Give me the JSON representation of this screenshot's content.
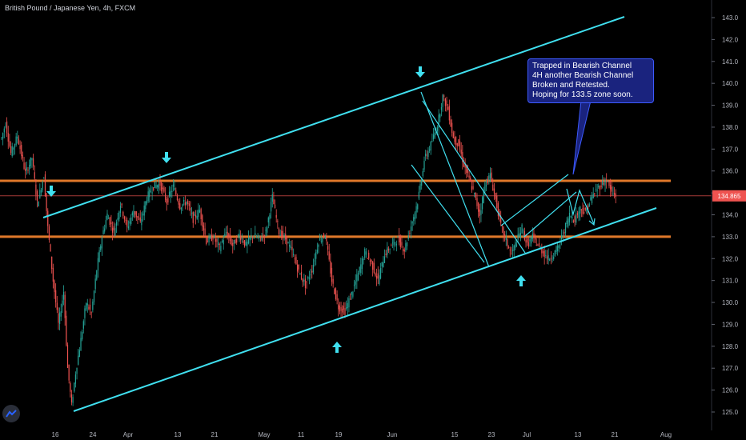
{
  "header": {
    "symbol": "British Pound / Japanese Yen, 4h, FXCM"
  },
  "note": {
    "lines": [
      "Trapped in Bearish Channel",
      "4H another Bearish Channel",
      "Broken and Retested.",
      "Hoping for 133.5 zone soon."
    ]
  },
  "logo": {
    "icon": "tradingview-logo-icon"
  },
  "colors": {
    "background": "#000000",
    "up": "#26a69a",
    "down": "#ef5350",
    "channel": "#40e0f0",
    "level": "#e0782a",
    "price_badge": "#ef5350",
    "note_bg": "#1a237e"
  },
  "chart_data": {
    "type": "candlestick",
    "ylim": [
      124.7,
      143.3
    ],
    "y_ticks": [
      125.0,
      126.0,
      127.0,
      128.0,
      129.0,
      130.0,
      131.0,
      132.0,
      133.0,
      134.0,
      135.0,
      136.0,
      137.0,
      138.0,
      139.0,
      140.0,
      141.0,
      142.0,
      143.0
    ],
    "x_ticks": [
      "16",
      "24",
      "Apr",
      "13",
      "21",
      "May",
      "11",
      "19",
      "Jun",
      "15",
      "23",
      "Jul",
      "13",
      "21",
      "Aug"
    ],
    "last_price": "134.865",
    "horizontal_levels": [
      135.55,
      133.0
    ],
    "price_path": [
      {
        "x": 0,
        "y": 137.5
      },
      {
        "x": 0.3,
        "y": 138.2
      },
      {
        "x": 0.7,
        "y": 136.8
      },
      {
        "x": 1.2,
        "y": 137.6
      },
      {
        "x": 1.8,
        "y": 135.9
      },
      {
        "x": 2.3,
        "y": 136.6
      },
      {
        "x": 2.7,
        "y": 134.5
      },
      {
        "x": 3.2,
        "y": 135.8
      },
      {
        "x": 3.5,
        "y": 133.4
      },
      {
        "x": 3.9,
        "y": 131.0
      },
      {
        "x": 4.3,
        "y": 129.0
      },
      {
        "x": 4.7,
        "y": 130.5
      },
      {
        "x": 5.0,
        "y": 127.0
      },
      {
        "x": 5.3,
        "y": 125.3
      },
      {
        "x": 5.6,
        "y": 126.8
      },
      {
        "x": 6.0,
        "y": 128.3
      },
      {
        "x": 6.4,
        "y": 130.0
      },
      {
        "x": 6.8,
        "y": 129.5
      },
      {
        "x": 7.2,
        "y": 131.5
      },
      {
        "x": 7.6,
        "y": 133.0
      },
      {
        "x": 8.0,
        "y": 134.0
      },
      {
        "x": 8.5,
        "y": 133.2
      },
      {
        "x": 9.0,
        "y": 134.5
      },
      {
        "x": 9.5,
        "y": 133.4
      },
      {
        "x": 10.0,
        "y": 134.2
      },
      {
        "x": 10.5,
        "y": 133.6
      },
      {
        "x": 11.0,
        "y": 134.8
      },
      {
        "x": 11.5,
        "y": 135.3
      },
      {
        "x": 12.0,
        "y": 135.4
      },
      {
        "x": 12.5,
        "y": 134.6
      },
      {
        "x": 13.0,
        "y": 135.3
      },
      {
        "x": 13.5,
        "y": 134.4
      },
      {
        "x": 14.0,
        "y": 134.6
      },
      {
        "x": 14.5,
        "y": 133.8
      },
      {
        "x": 15.0,
        "y": 134.2
      },
      {
        "x": 15.5,
        "y": 132.8
      },
      {
        "x": 16.0,
        "y": 133.0
      },
      {
        "x": 16.5,
        "y": 132.5
      },
      {
        "x": 17.0,
        "y": 133.2
      },
      {
        "x": 17.5,
        "y": 132.6
      },
      {
        "x": 18.0,
        "y": 133.1
      },
      {
        "x": 18.5,
        "y": 132.6
      },
      {
        "x": 19.0,
        "y": 133.1
      },
      {
        "x": 19.5,
        "y": 132.9
      },
      {
        "x": 20.0,
        "y": 133.2
      },
      {
        "x": 20.5,
        "y": 134.8
      },
      {
        "x": 21.0,
        "y": 133.2
      },
      {
        "x": 21.5,
        "y": 132.9
      },
      {
        "x": 22.0,
        "y": 132.3
      },
      {
        "x": 22.5,
        "y": 131.4
      },
      {
        "x": 23.0,
        "y": 130.8
      },
      {
        "x": 23.5,
        "y": 131.5
      },
      {
        "x": 24.0,
        "y": 132.8
      },
      {
        "x": 24.5,
        "y": 133.1
      },
      {
        "x": 25.0,
        "y": 131.0
      },
      {
        "x": 25.5,
        "y": 129.8
      },
      {
        "x": 26.0,
        "y": 129.6
      },
      {
        "x": 26.5,
        "y": 130.4
      },
      {
        "x": 27.0,
        "y": 131.3
      },
      {
        "x": 27.5,
        "y": 132.3
      },
      {
        "x": 28.0,
        "y": 131.8
      },
      {
        "x": 28.5,
        "y": 131.0
      },
      {
        "x": 29.0,
        "y": 132.2
      },
      {
        "x": 29.5,
        "y": 132.6
      },
      {
        "x": 30.0,
        "y": 132.9
      },
      {
        "x": 30.5,
        "y": 132.4
      },
      {
        "x": 31.0,
        "y": 133.5
      },
      {
        "x": 31.5,
        "y": 134.6
      },
      {
        "x": 32.0,
        "y": 136.5
      },
      {
        "x": 32.5,
        "y": 137.2
      },
      {
        "x": 33.0,
        "y": 138.1
      },
      {
        "x": 33.4,
        "y": 139.4
      },
      {
        "x": 33.8,
        "y": 138.8
      },
      {
        "x": 34.2,
        "y": 137.5
      },
      {
        "x": 34.6,
        "y": 137.2
      },
      {
        "x": 35.0,
        "y": 136.3
      },
      {
        "x": 35.4,
        "y": 135.6
      },
      {
        "x": 35.8,
        "y": 134.9
      },
      {
        "x": 36.2,
        "y": 134.0
      },
      {
        "x": 36.6,
        "y": 135.4
      },
      {
        "x": 37.0,
        "y": 135.8
      },
      {
        "x": 37.4,
        "y": 134.7
      },
      {
        "x": 37.8,
        "y": 133.5
      },
      {
        "x": 38.2,
        "y": 132.8
      },
      {
        "x": 38.6,
        "y": 132.2
      },
      {
        "x": 39.0,
        "y": 132.8
      },
      {
        "x": 39.4,
        "y": 133.4
      },
      {
        "x": 39.8,
        "y": 132.6
      },
      {
        "x": 40.2,
        "y": 133.0
      },
      {
        "x": 40.6,
        "y": 132.6
      },
      {
        "x": 41.0,
        "y": 132.3
      },
      {
        "x": 41.4,
        "y": 132.0
      },
      {
        "x": 41.8,
        "y": 132.2
      },
      {
        "x": 42.2,
        "y": 132.6
      },
      {
        "x": 42.6,
        "y": 133.3
      },
      {
        "x": 43.0,
        "y": 134.0
      },
      {
        "x": 43.4,
        "y": 133.8
      },
      {
        "x": 43.8,
        "y": 134.3
      },
      {
        "x": 44.2,
        "y": 134.1
      },
      {
        "x": 44.6,
        "y": 134.7
      },
      {
        "x": 45.0,
        "y": 135.1
      },
      {
        "x": 45.4,
        "y": 135.4
      },
      {
        "x": 45.8,
        "y": 135.6
      },
      {
        "x": 46.2,
        "y": 135.0
      },
      {
        "x": 46.5,
        "y": 134.865
      }
    ]
  }
}
